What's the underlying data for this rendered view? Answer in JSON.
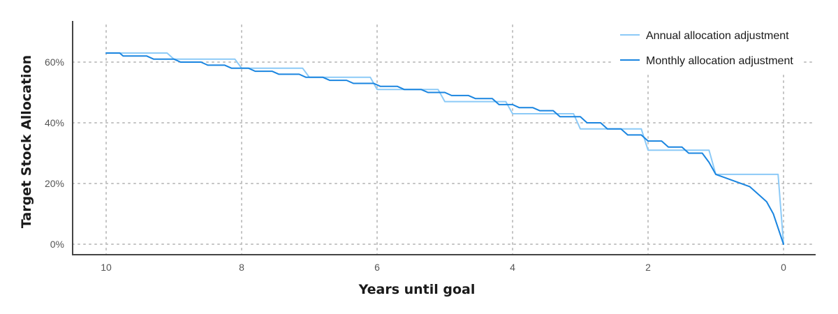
{
  "chart_data": {
    "type": "line",
    "xlabel": "Years until goal",
    "ylabel": "Target Stock Allocation",
    "xlim": [
      10,
      0
    ],
    "ylim": [
      0,
      70
    ],
    "x_ticks": [
      10,
      8,
      6,
      4,
      2,
      0
    ],
    "x_tick_labels": [
      "10",
      "8",
      "6",
      "4",
      "2",
      "0"
    ],
    "y_ticks": [
      0,
      20,
      40,
      60
    ],
    "y_tick_labels": [
      "0%",
      "20%",
      "40%",
      "60%"
    ],
    "grid": true,
    "legend_position": "top-right",
    "series": [
      {
        "name": "Annual allocation adjustment",
        "color": "#8ccaf7",
        "x": [
          10,
          9.1,
          9.0,
          8.1,
          8.0,
          7.1,
          7.0,
          6.1,
          6.0,
          5.1,
          5.0,
          4.1,
          4.0,
          3.1,
          3.0,
          2.1,
          2.0,
          1.1,
          1.0,
          0.08,
          0
        ],
        "y": [
          63,
          63,
          61,
          61,
          58,
          58,
          55,
          55,
          51,
          51,
          47,
          47,
          43,
          43,
          38,
          38,
          31,
          31,
          23,
          23,
          0
        ]
      },
      {
        "name": "Monthly allocation adjustment",
        "color": "#1a85e0",
        "x": [
          10,
          9.8,
          9.75,
          9.4,
          9.3,
          9.0,
          8.9,
          8.6,
          8.5,
          8.25,
          8.15,
          7.9,
          7.8,
          7.55,
          7.45,
          7.15,
          7.05,
          6.8,
          6.7,
          6.45,
          6.35,
          6.05,
          5.95,
          5.7,
          5.6,
          5.35,
          5.25,
          5.0,
          4.9,
          4.65,
          4.55,
          4.3,
          4.2,
          4.0,
          3.9,
          3.7,
          3.6,
          3.4,
          3.3,
          3.0,
          2.9,
          2.7,
          2.6,
          2.4,
          2.3,
          2.1,
          2.0,
          1.8,
          1.7,
          1.5,
          1.4,
          1.2,
          1.1,
          1.0,
          0.5,
          0.35,
          0.25,
          0.15,
          0
        ],
        "y": [
          63,
          63,
          62,
          62,
          61,
          61,
          60,
          60,
          59,
          59,
          58,
          58,
          57,
          57,
          56,
          56,
          55,
          55,
          54,
          54,
          53,
          53,
          52,
          52,
          51,
          51,
          50,
          50,
          49,
          49,
          48,
          48,
          46,
          46,
          45,
          45,
          44,
          44,
          42,
          42,
          40,
          40,
          38,
          38,
          36,
          36,
          34,
          34,
          32,
          32,
          30,
          30,
          27,
          23,
          19,
          16,
          14,
          10,
          0
        ]
      }
    ]
  }
}
